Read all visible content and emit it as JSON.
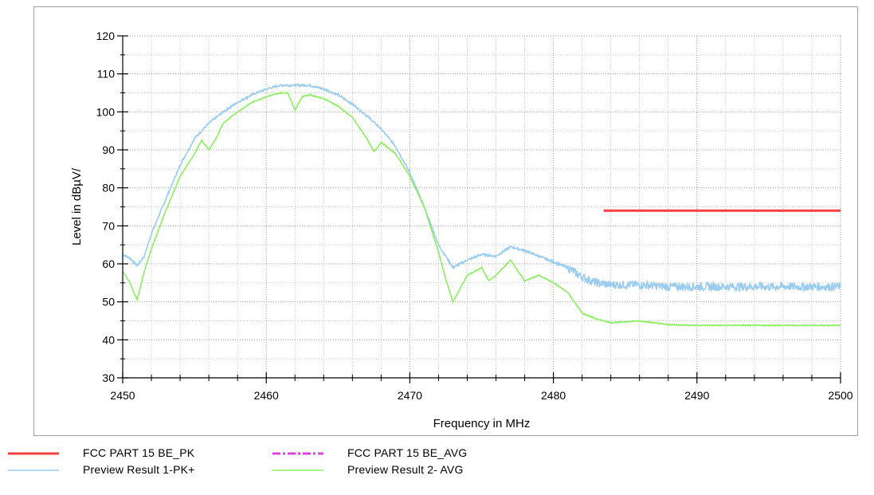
{
  "chart_data": {
    "type": "line",
    "xlabel": "Frequency in MHz",
    "ylabel": "Level in dBµV/",
    "xlim": [
      2450,
      2500
    ],
    "ylim": [
      30,
      120
    ],
    "xticks": [
      2450,
      2460,
      2470,
      2480,
      2490,
      2500
    ],
    "yticks": [
      30,
      40,
      50,
      60,
      70,
      80,
      90,
      100,
      110,
      120
    ],
    "grid": true,
    "legend_position": "bottom",
    "series": [
      {
        "name": "FCC PART 15 BE_PK",
        "color": "#f04040",
        "style": "solid",
        "x": [
          2483.5,
          2500
        ],
        "y": [
          74,
          74
        ]
      },
      {
        "name": "FCC PART 15 BE_AVG",
        "color": "#e040e0",
        "style": "dash-dot",
        "x": [],
        "y": []
      },
      {
        "name": "Preview Result 1-PK+",
        "color": "#99ccf0",
        "style": "solid",
        "x": [
          2450,
          2450.5,
          2451,
          2451.5,
          2452,
          2453,
          2454,
          2455,
          2456,
          2457,
          2458,
          2459,
          2460,
          2461,
          2462,
          2463,
          2464,
          2465,
          2466,
          2467,
          2468,
          2469,
          2470,
          2471,
          2472,
          2473,
          2474,
          2475,
          2476,
          2477,
          2478,
          2479,
          2480,
          2481,
          2482,
          2483,
          2484,
          2486,
          2488,
          2490,
          2492,
          2494,
          2496,
          2498,
          2500
        ],
        "y": [
          62.5,
          61.5,
          59.5,
          62,
          68,
          77,
          86,
          93,
          97,
          100,
          102.5,
          104.5,
          106,
          107,
          107,
          107,
          106,
          104.5,
          102,
          99,
          95.5,
          91,
          84,
          75,
          65,
          59,
          61,
          62.5,
          62,
          64.5,
          63.5,
          62,
          60.5,
          59,
          56.5,
          55,
          54.5,
          54.5,
          54,
          54,
          54,
          54,
          54,
          54,
          54
        ]
      },
      {
        "name": "Preview Result 2- AVG",
        "color": "#8cf060",
        "style": "solid",
        "x": [
          2450,
          2450.5,
          2451,
          2451.5,
          2452,
          2453,
          2454,
          2455,
          2455.5,
          2456,
          2456.5,
          2457,
          2458,
          2459,
          2460,
          2461,
          2461.5,
          2462,
          2462.5,
          2463,
          2464,
          2465,
          2466,
          2467,
          2467.5,
          2468,
          2469,
          2470,
          2471,
          2472,
          2472.5,
          2473,
          2474,
          2475,
          2475.5,
          2476,
          2477,
          2478,
          2479,
          2480,
          2481,
          2482,
          2483,
          2484,
          2486,
          2488,
          2490,
          2492,
          2494,
          2496,
          2498,
          2500
        ],
        "y": [
          58,
          55,
          50.5,
          58,
          64,
          74,
          83,
          89,
          92.5,
          90,
          93,
          97,
          100,
          102.5,
          104,
          105,
          105,
          100.5,
          104,
          104.5,
          103.5,
          101.5,
          98.5,
          93,
          89.5,
          92,
          89,
          83,
          75,
          63,
          56,
          50,
          57,
          59,
          55.5,
          57,
          61,
          55.5,
          57,
          55,
          52.5,
          47,
          45.5,
          44.5,
          45,
          44,
          43.8,
          43.8,
          43.8,
          43.8,
          43.8,
          43.8
        ]
      }
    ]
  }
}
